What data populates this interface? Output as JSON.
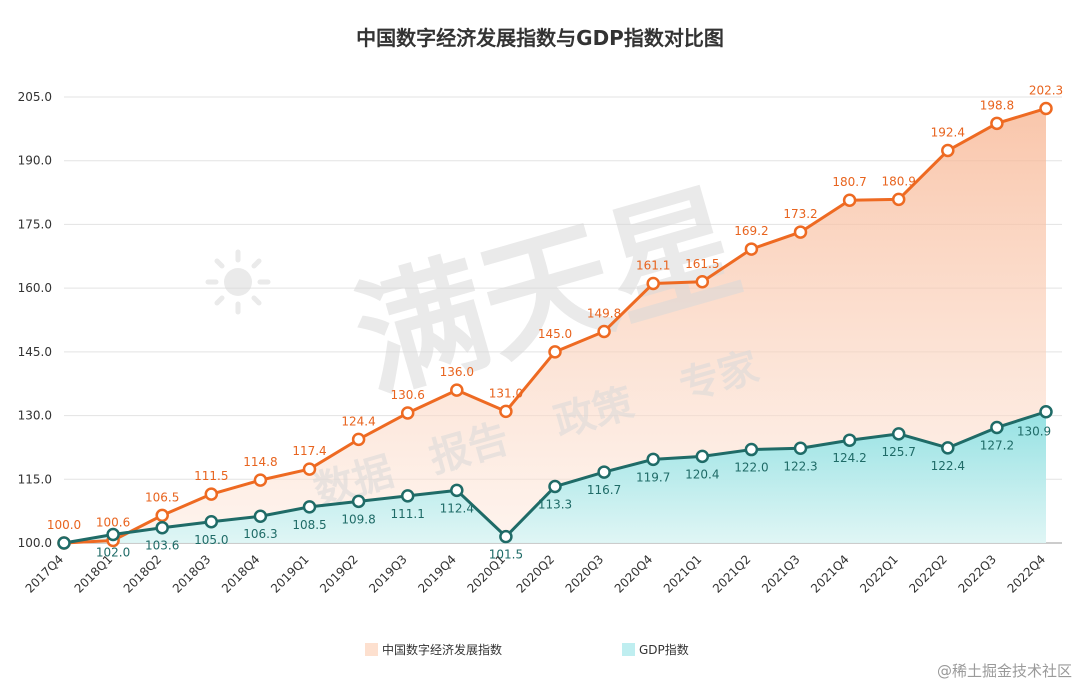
{
  "chart_data": {
    "type": "line",
    "title": "中国数字经济发展指数与GDP指数对比图",
    "categories": [
      "2017Q4",
      "2018Q1",
      "2018Q2",
      "2018Q3",
      "2018Q4",
      "2019Q1",
      "2019Q2",
      "2019Q3",
      "2019Q4",
      "2020Q1",
      "2020Q2",
      "2020Q3",
      "2020Q4",
      "2021Q1",
      "2021Q2",
      "2021Q3",
      "2021Q4",
      "2022Q1",
      "2022Q2",
      "2022Q3",
      "2022Q4"
    ],
    "yticks": [
      "100.0",
      "115.0",
      "130.0",
      "145.0",
      "160.0",
      "175.0",
      "190.0",
      "205.0"
    ],
    "ylim": [
      100,
      205
    ],
    "series": [
      {
        "name": "中国数字经济发展指数",
        "color": "#ee6a22",
        "values": [
          100.0,
          100.6,
          106.5,
          111.5,
          114.8,
          117.4,
          124.4,
          130.6,
          136.0,
          131.0,
          145.0,
          149.8,
          161.1,
          161.5,
          169.2,
          173.2,
          180.7,
          180.9,
          192.4,
          198.8,
          202.3
        ],
        "labels": [
          "100.0",
          "100.6",
          "106.5",
          "111.5",
          "114.8",
          "117.4",
          "124.4",
          "130.6",
          "136.0",
          "131.0",
          "145.0",
          "149.8",
          "161.1",
          "161.5",
          "169.2",
          "173.2",
          "180.7",
          "180.9",
          "192.4",
          "198.8",
          "202.3"
        ]
      },
      {
        "name": "GDP指数",
        "color": "#1f6b67",
        "values": [
          100.0,
          102.0,
          103.6,
          105.0,
          106.3,
          108.5,
          109.8,
          111.1,
          112.4,
          101.5,
          113.3,
          116.7,
          119.7,
          120.4,
          122.0,
          122.3,
          124.2,
          125.7,
          122.4,
          127.2,
          130.9
        ],
        "labels": [
          "100.0",
          "102.0",
          "103.6",
          "105.0",
          "106.3",
          "108.5",
          "109.8",
          "111.1",
          "112.4",
          "101.5",
          "113.3",
          "116.7",
          "119.7",
          "120.4",
          "122.0",
          "122.3",
          "124.2",
          "125.7",
          "122.4",
          "127.2",
          "130.9"
        ]
      }
    ],
    "legend_position": "bottom",
    "watermark": {
      "brand": "满天星",
      "slogan": [
        "数据",
        "报告",
        "政策",
        "专家"
      ]
    },
    "credit": "@稀土掘金技术社区"
  }
}
